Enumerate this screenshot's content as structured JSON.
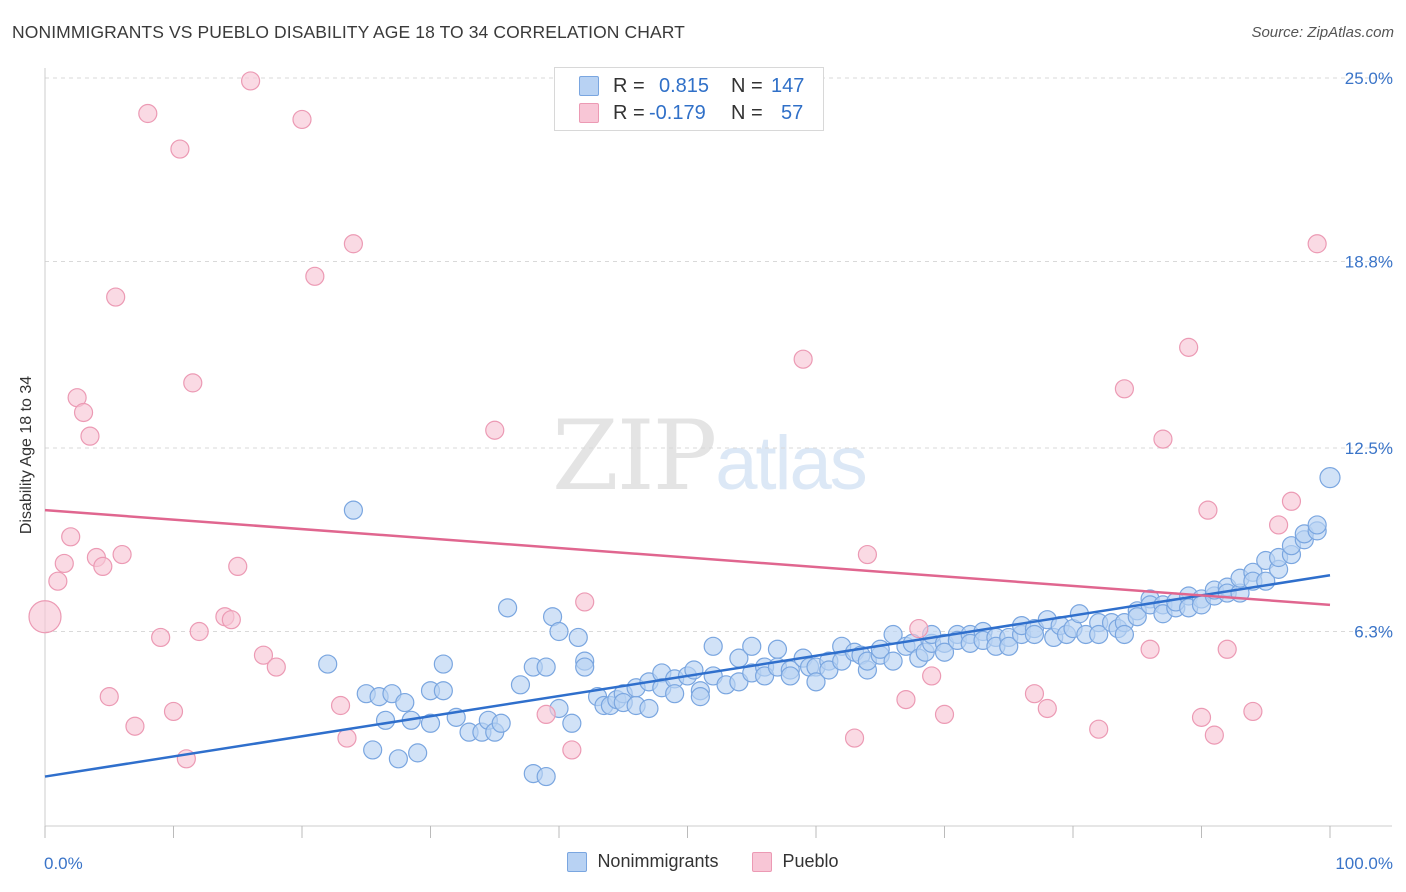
{
  "title": "NONIMMIGRANTS VS PUEBLO DISABILITY AGE 18 TO 34 CORRELATION CHART",
  "source": "Source: ZipAtlas.com",
  "watermark": {
    "zip": "ZIP",
    "atlas": "atlas"
  },
  "legend_top": {
    "r_label": "R =",
    "n_label": "N =",
    "rows": [
      {
        "series": "Nonimmigrants",
        "r": "0.815",
        "n": "147"
      },
      {
        "series": "Pueblo",
        "r": "-0.179",
        "n": "57"
      }
    ]
  },
  "colors": {
    "nonimmigrants_fill": "#b8d2f3",
    "nonimmigrants_stroke": "#7aa6e0",
    "nonimmigrants_line": "#2f6fcc",
    "pueblo_fill": "#f8c6d6",
    "pueblo_stroke": "#ec9ab4",
    "pueblo_line": "#e0668f",
    "grid": "#d9d9d9",
    "tick_label": "#3a74c8"
  },
  "chart_data": {
    "type": "scatter",
    "xlabel": "",
    "ylabel": "Disability Age 18 to 34",
    "xlim": [
      0,
      100
    ],
    "ylim": [
      0,
      25
    ],
    "x_tick_labels": [
      {
        "value": 0,
        "label": "0.0%"
      },
      {
        "value": 100,
        "label": "100.0%"
      }
    ],
    "y_tick_labels": [
      {
        "value": 6.3,
        "label": "6.3%"
      },
      {
        "value": 12.5,
        "label": "12.5%"
      },
      {
        "value": 18.8,
        "label": "18.8%"
      },
      {
        "value": 25.0,
        "label": "25.0%"
      }
    ],
    "grid": true,
    "legend_position": "bottom",
    "series": [
      {
        "name": "Nonimmigrants",
        "trend": {
          "x": [
            0,
            100
          ],
          "y": [
            1.4,
            8.2
          ]
        },
        "points": [
          [
            24,
            10.4
          ],
          [
            22,
            5.2
          ],
          [
            25,
            4.2
          ],
          [
            25.5,
            2.3
          ],
          [
            26,
            4.1
          ],
          [
            26.5,
            3.3
          ],
          [
            27,
            4.2
          ],
          [
            27.5,
            2.0
          ],
          [
            28,
            3.9
          ],
          [
            28.5,
            3.3
          ],
          [
            29,
            2.2
          ],
          [
            30,
            4.3
          ],
          [
            30,
            3.2
          ],
          [
            31,
            5.2
          ],
          [
            31,
            4.3
          ],
          [
            32,
            3.4
          ],
          [
            33,
            2.9
          ],
          [
            34,
            2.9
          ],
          [
            34.5,
            3.3
          ],
          [
            35,
            2.9
          ],
          [
            35.5,
            3.2
          ],
          [
            36,
            7.1
          ],
          [
            37,
            4.5
          ],
          [
            38,
            5.1
          ],
          [
            38,
            1.5
          ],
          [
            39,
            5.1
          ],
          [
            39,
            1.4
          ],
          [
            39.5,
            6.8
          ],
          [
            40,
            6.3
          ],
          [
            40,
            3.7
          ],
          [
            41,
            3.2
          ],
          [
            41.5,
            6.1
          ],
          [
            42,
            5.3
          ],
          [
            42,
            5.1
          ],
          [
            43,
            4.1
          ],
          [
            43.5,
            3.8
          ],
          [
            44,
            3.8
          ],
          [
            44.5,
            4.0
          ],
          [
            45,
            4.2
          ],
          [
            45,
            3.9
          ],
          [
            46,
            3.8
          ],
          [
            46,
            4.4
          ],
          [
            47,
            4.6
          ],
          [
            47,
            3.7
          ],
          [
            48,
            4.9
          ],
          [
            48,
            4.4
          ],
          [
            49,
            4.7
          ],
          [
            49,
            4.2
          ],
          [
            50,
            4.8
          ],
          [
            50.5,
            5.0
          ],
          [
            51,
            4.3
          ],
          [
            51,
            4.1
          ],
          [
            52,
            5.8
          ],
          [
            52,
            4.8
          ],
          [
            53,
            4.5
          ],
          [
            54,
            5.4
          ],
          [
            54,
            4.6
          ],
          [
            55,
            5.8
          ],
          [
            55,
            4.9
          ],
          [
            56,
            5.1
          ],
          [
            56,
            4.8
          ],
          [
            57,
            5.7
          ],
          [
            57,
            5.1
          ],
          [
            58,
            5.0
          ],
          [
            58,
            4.8
          ],
          [
            59,
            5.4
          ],
          [
            59.5,
            5.1
          ],
          [
            60,
            5.1
          ],
          [
            60,
            4.6
          ],
          [
            61,
            5.3
          ],
          [
            61,
            5.0
          ],
          [
            62,
            5.8
          ],
          [
            62,
            5.3
          ],
          [
            63,
            5.6
          ],
          [
            63.5,
            5.5
          ],
          [
            64,
            5.0
          ],
          [
            64,
            5.3
          ],
          [
            65,
            5.5
          ],
          [
            65,
            5.7
          ],
          [
            66,
            6.2
          ],
          [
            66,
            5.3
          ],
          [
            67,
            5.8
          ],
          [
            67.5,
            5.9
          ],
          [
            68,
            5.4
          ],
          [
            68.5,
            5.6
          ],
          [
            69,
            5.9
          ],
          [
            69,
            6.2
          ],
          [
            70,
            5.9
          ],
          [
            70,
            5.6
          ],
          [
            71,
            6.2
          ],
          [
            71,
            6.0
          ],
          [
            72,
            6.2
          ],
          [
            72,
            5.9
          ],
          [
            73,
            6.3
          ],
          [
            73,
            6.0
          ],
          [
            74,
            6.1
          ],
          [
            74,
            5.8
          ],
          [
            75,
            6.1
          ],
          [
            75,
            5.8
          ],
          [
            76,
            6.2
          ],
          [
            76,
            6.5
          ],
          [
            77,
            6.4
          ],
          [
            77,
            6.2
          ],
          [
            78,
            6.7
          ],
          [
            78.5,
            6.1
          ],
          [
            79,
            6.5
          ],
          [
            79.5,
            6.2
          ],
          [
            80,
            6.4
          ],
          [
            80.5,
            6.9
          ],
          [
            81,
            6.2
          ],
          [
            82,
            6.6
          ],
          [
            82,
            6.2
          ],
          [
            83,
            6.6
          ],
          [
            83.5,
            6.4
          ],
          [
            84,
            6.6
          ],
          [
            84,
            6.2
          ],
          [
            85,
            7.0
          ],
          [
            85,
            6.8
          ],
          [
            86,
            7.4
          ],
          [
            86,
            7.2
          ],
          [
            87,
            7.2
          ],
          [
            87,
            6.9
          ],
          [
            88,
            7.1
          ],
          [
            88,
            7.3
          ],
          [
            89,
            7.5
          ],
          [
            89,
            7.1
          ],
          [
            90,
            7.4
          ],
          [
            90,
            7.2
          ],
          [
            91,
            7.5
          ],
          [
            91,
            7.7
          ],
          [
            92,
            7.8
          ],
          [
            92,
            7.6
          ],
          [
            93,
            7.6
          ],
          [
            93,
            8.1
          ],
          [
            94,
            8.3
          ],
          [
            94,
            8.0
          ],
          [
            95,
            8.0
          ],
          [
            95,
            8.7
          ],
          [
            96,
            8.4
          ],
          [
            96,
            8.8
          ],
          [
            97,
            8.9
          ],
          [
            97,
            9.2
          ],
          [
            98,
            9.4
          ],
          [
            98,
            9.6
          ],
          [
            99,
            9.7
          ],
          [
            99,
            9.9
          ],
          [
            100,
            11.5
          ]
        ]
      },
      {
        "name": "Pueblo",
        "trend": {
          "x": [
            0,
            100
          ],
          "y": [
            10.4,
            7.2
          ]
        },
        "points": [
          [
            0,
            6.8
          ],
          [
            1,
            8.0
          ],
          [
            1.5,
            8.6
          ],
          [
            2,
            9.5
          ],
          [
            2.5,
            14.2
          ],
          [
            3,
            13.7
          ],
          [
            3.5,
            12.9
          ],
          [
            4,
            8.8
          ],
          [
            4.5,
            8.5
          ],
          [
            5,
            4.1
          ],
          [
            5.5,
            17.6
          ],
          [
            6,
            8.9
          ],
          [
            7,
            3.1
          ],
          [
            8,
            23.8
          ],
          [
            9,
            6.1
          ],
          [
            10,
            3.6
          ],
          [
            10.5,
            22.6
          ],
          [
            11,
            2.0
          ],
          [
            11.5,
            14.7
          ],
          [
            12,
            6.3
          ],
          [
            14,
            6.8
          ],
          [
            14.5,
            6.7
          ],
          [
            15,
            8.5
          ],
          [
            16,
            24.9
          ],
          [
            17,
            5.5
          ],
          [
            18,
            5.1
          ],
          [
            20,
            23.6
          ],
          [
            21,
            18.3
          ],
          [
            23,
            3.8
          ],
          [
            23.5,
            2.7
          ],
          [
            24,
            19.4
          ],
          [
            35,
            13.1
          ],
          [
            39,
            3.5
          ],
          [
            41,
            2.3
          ],
          [
            42,
            7.3
          ],
          [
            59,
            15.5
          ],
          [
            63,
            2.7
          ],
          [
            64,
            8.9
          ],
          [
            67,
            4.0
          ],
          [
            68,
            6.4
          ],
          [
            69,
            4.8
          ],
          [
            70,
            3.5
          ],
          [
            77,
            4.2
          ],
          [
            78,
            3.7
          ],
          [
            82,
            3.0
          ],
          [
            84,
            14.5
          ],
          [
            86,
            5.7
          ],
          [
            87,
            12.8
          ],
          [
            89,
            15.9
          ],
          [
            90,
            3.4
          ],
          [
            90.5,
            10.4
          ],
          [
            91,
            2.8
          ],
          [
            92,
            5.7
          ],
          [
            94,
            3.6
          ],
          [
            96,
            9.9
          ],
          [
            97,
            10.7
          ],
          [
            99,
            19.4
          ]
        ]
      }
    ]
  }
}
